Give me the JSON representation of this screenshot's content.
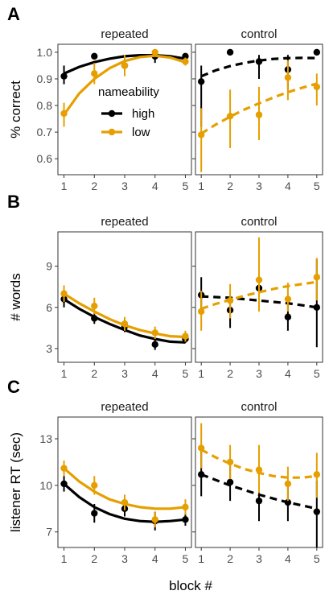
{
  "figure": {
    "panel_letters": [
      "A",
      "B",
      "C"
    ],
    "xlabel": "block #"
  },
  "colors": {
    "high": "#000000",
    "low": "#E69F00"
  },
  "legend": {
    "title": "nameability",
    "entries": [
      {
        "key": "high",
        "label": "high"
      },
      {
        "key": "low",
        "label": "low"
      }
    ],
    "placement": "inside panel A repeated, lower-middle"
  },
  "chart_data": [
    {
      "type": "line",
      "panel": "A",
      "ylabel": "% correct",
      "ylim": [
        0.54,
        1.03
      ],
      "yticks": [
        0.6,
        0.7,
        0.8,
        0.9,
        1.0
      ],
      "ytick_labels": [
        "0.6",
        "0.7",
        "0.8",
        "0.9",
        "1.0"
      ],
      "xticks": [
        1,
        2,
        3,
        4,
        5
      ],
      "xlim": [
        0.8,
        5.2
      ],
      "facets": [
        {
          "label": "repeated",
          "linestyle": "solid",
          "series": [
            {
              "key": "high",
              "x": [
                1,
                2,
                3,
                4,
                5
              ],
              "y": [
                0.91,
                0.985,
                0.95,
                0.985,
                0.985
              ],
              "lo": [
                0.88,
                0.985,
                0.93,
                0.96,
                0.985
              ],
              "hi": [
                0.95,
                0.985,
                0.975,
                1.0,
                0.985
              ],
              "fit": [
                [
                  1,
                  0.92
                ],
                [
                  1.5,
                  0.945
                ],
                [
                  2,
                  0.963
                ],
                [
                  2.5,
                  0.976
                ],
                [
                  3,
                  0.985
                ],
                [
                  3.5,
                  0.989
                ],
                [
                  4,
                  0.989
                ],
                [
                  4.5,
                  0.985
                ],
                [
                  5,
                  0.976
                ]
              ]
            },
            {
              "key": "low",
              "x": [
                1,
                2,
                3,
                4,
                5
              ],
              "y": [
                0.77,
                0.92,
                0.95,
                1.0,
                0.965
              ],
              "lo": [
                0.72,
                0.88,
                0.91,
                0.985,
                0.95
              ],
              "hi": [
                0.81,
                0.96,
                0.99,
                1.0,
                0.98
              ],
              "fit": [
                [
                  1,
                  0.765
                ],
                [
                  1.5,
                  0.845
                ],
                [
                  2,
                  0.9
                ],
                [
                  2.5,
                  0.94
                ],
                [
                  3,
                  0.967
                ],
                [
                  3.5,
                  0.982
                ],
                [
                  4,
                  0.987
                ],
                [
                  4.5,
                  0.98
                ],
                [
                  5,
                  0.962
                ]
              ]
            }
          ]
        },
        {
          "label": "control",
          "linestyle": "dashed",
          "series": [
            {
              "key": "high",
              "x": [
                1,
                2,
                3,
                4,
                5
              ],
              "y": [
                0.89,
                1.0,
                0.965,
                0.935,
                1.0
              ],
              "lo": [
                0.72,
                1.0,
                0.9,
                0.86,
                1.0
              ],
              "hi": [
                0.95,
                1.0,
                0.99,
                0.99,
                1.0
              ],
              "fit": [
                [
                  1,
                  0.91
                ],
                [
                  1.5,
                  0.932
                ],
                [
                  2,
                  0.948
                ],
                [
                  2.5,
                  0.96
                ],
                [
                  3,
                  0.969
                ],
                [
                  3.5,
                  0.975
                ],
                [
                  4,
                  0.978
                ],
                [
                  4.5,
                  0.979
                ],
                [
                  5,
                  0.978
                ]
              ]
            },
            {
              "key": "low",
              "x": [
                1,
                2,
                3,
                4,
                5
              ],
              "y": [
                0.69,
                0.76,
                0.765,
                0.905,
                0.87
              ],
              "lo": [
                0.55,
                0.64,
                0.67,
                0.82,
                0.8
              ],
              "hi": [
                0.79,
                0.86,
                0.87,
                0.97,
                0.92
              ],
              "fit": [
                [
                  1,
                  0.695
                ],
                [
                  1.5,
                  0.728
                ],
                [
                  2,
                  0.758
                ],
                [
                  2.5,
                  0.785
                ],
                [
                  3,
                  0.808
                ],
                [
                  3.5,
                  0.83
                ],
                [
                  4,
                  0.85
                ],
                [
                  4.5,
                  0.867
                ],
                [
                  5,
                  0.882
                ]
              ]
            }
          ]
        }
      ]
    },
    {
      "type": "line",
      "panel": "B",
      "ylabel": "# words",
      "ylim": [
        2.0,
        11.5
      ],
      "yticks": [
        3,
        6,
        9
      ],
      "ytick_labels": [
        "3",
        "6",
        "9"
      ],
      "xticks": [
        1,
        2,
        3,
        4,
        5
      ],
      "xlim": [
        0.8,
        5.2
      ],
      "facets": [
        {
          "label": "repeated",
          "linestyle": "solid",
          "series": [
            {
              "key": "high",
              "x": [
                1,
                2,
                3,
                4,
                5
              ],
              "y": [
                6.6,
                5.2,
                4.6,
                3.3,
                3.7
              ],
              "lo": [
                6.0,
                4.8,
                4.2,
                2.9,
                3.4
              ],
              "hi": [
                7.2,
                5.6,
                5.0,
                3.7,
                4.0
              ],
              "fit": [
                [
                  1,
                  6.6
                ],
                [
                  1.5,
                  5.9
                ],
                [
                  2,
                  5.3
                ],
                [
                  2.5,
                  4.8
                ],
                [
                  3,
                  4.35
                ],
                [
                  3.5,
                  3.95
                ],
                [
                  4,
                  3.7
                ],
                [
                  4.5,
                  3.5
                ],
                [
                  5,
                  3.45
                ]
              ]
            },
            {
              "key": "low",
              "x": [
                1,
                2,
                3,
                4,
                5
              ],
              "y": [
                7.0,
                6.1,
                4.8,
                4.15,
                3.9
              ],
              "lo": [
                6.4,
                5.5,
                4.3,
                3.7,
                3.5
              ],
              "hi": [
                7.6,
                6.7,
                5.3,
                4.6,
                4.3
              ],
              "fit": [
                [
                  1,
                  7.0
                ],
                [
                  1.5,
                  6.3
                ],
                [
                  2,
                  5.7
                ],
                [
                  2.5,
                  5.15
                ],
                [
                  3,
                  4.7
                ],
                [
                  3.5,
                  4.35
                ],
                [
                  4,
                  4.1
                ],
                [
                  4.5,
                  3.9
                ],
                [
                  5,
                  3.85
                ]
              ]
            }
          ]
        },
        {
          "label": "control",
          "linestyle": "dashed",
          "series": [
            {
              "key": "high",
              "x": [
                1,
                2,
                3,
                4,
                5
              ],
              "y": [
                6.9,
                5.8,
                7.4,
                5.3,
                6.0
              ],
              "lo": [
                5.9,
                4.5,
                6.2,
                4.3,
                3.1
              ],
              "hi": [
                8.2,
                6.8,
                8.4,
                6.2,
                9.5
              ],
              "fit": [
                [
                  1,
                  6.8
                ],
                [
                  1.5,
                  6.75
                ],
                [
                  2,
                  6.7
                ],
                [
                  2.5,
                  6.6
                ],
                [
                  3,
                  6.5
                ],
                [
                  3.5,
                  6.4
                ],
                [
                  4,
                  6.3
                ],
                [
                  4.5,
                  6.15
                ],
                [
                  5,
                  6.0
                ]
              ]
            },
            {
              "key": "low",
              "x": [
                1,
                2,
                3,
                4,
                5
              ],
              "y": [
                5.7,
                6.5,
                8.0,
                6.6,
                8.2
              ],
              "lo": [
                4.3,
                5.2,
                5.7,
                5.7,
                6.5
              ],
              "hi": [
                7.2,
                7.7,
                11.1,
                7.8,
                9.6
              ],
              "fit": [
                [
                  1,
                  5.9
                ],
                [
                  1.5,
                  6.25
                ],
                [
                  2,
                  6.55
                ],
                [
                  2.5,
                  6.85
                ],
                [
                  3,
                  7.1
                ],
                [
                  3.5,
                  7.35
                ],
                [
                  4,
                  7.55
                ],
                [
                  4.5,
                  7.7
                ],
                [
                  5,
                  7.85
                ]
              ]
            }
          ]
        }
      ]
    },
    {
      "type": "line",
      "panel": "C",
      "ylabel": "listener RT (sec)",
      "ylim": [
        6.0,
        14.4
      ],
      "yticks": [
        7,
        10,
        13
      ],
      "ytick_labels": [
        "7",
        "10",
        "13"
      ],
      "xticks": [
        1,
        2,
        3,
        4,
        5
      ],
      "xlim": [
        0.8,
        5.2
      ],
      "facets": [
        {
          "label": "repeated",
          "linestyle": "solid",
          "series": [
            {
              "key": "high",
              "x": [
                1,
                2,
                3,
                4,
                5
              ],
              "y": [
                10.1,
                8.2,
                8.5,
                7.7,
                7.8
              ],
              "lo": [
                9.6,
                7.6,
                8.0,
                7.1,
                7.4
              ],
              "hi": [
                10.6,
                8.8,
                9.0,
                8.3,
                8.2
              ],
              "fit": [
                [
                  1,
                  10.1
                ],
                [
                  1.5,
                  9.25
                ],
                [
                  2,
                  8.6
                ],
                [
                  2.5,
                  8.15
                ],
                [
                  3,
                  7.85
                ],
                [
                  3.5,
                  7.7
                ],
                [
                  4,
                  7.65
                ],
                [
                  4.5,
                  7.7
                ],
                [
                  5,
                  7.8
                ]
              ]
            },
            {
              "key": "low",
              "x": [
                1,
                2,
                3,
                4,
                5
              ],
              "y": [
                11.1,
                10.0,
                8.9,
                7.8,
                8.6
              ],
              "lo": [
                10.6,
                9.4,
                8.4,
                7.3,
                8.1
              ],
              "hi": [
                11.6,
                10.6,
                9.4,
                8.3,
                9.1
              ],
              "fit": [
                [
                  1,
                  11.1
                ],
                [
                  1.5,
                  10.25
                ],
                [
                  2,
                  9.6
                ],
                [
                  2.5,
                  9.1
                ],
                [
                  3,
                  8.8
                ],
                [
                  3.5,
                  8.6
                ],
                [
                  4,
                  8.5
                ],
                [
                  4.5,
                  8.5
                ],
                [
                  5,
                  8.6
                ]
              ]
            }
          ]
        },
        {
          "label": "control",
          "linestyle": "dashed",
          "series": [
            {
              "key": "high",
              "x": [
                1,
                2,
                3,
                4,
                5
              ],
              "y": [
                10.7,
                10.2,
                9.0,
                8.9,
                8.3
              ],
              "lo": [
                9.3,
                9.0,
                7.7,
                7.7,
                6.0
              ],
              "hi": [
                12.2,
                11.5,
                10.3,
                10.0,
                10.3
              ],
              "fit": [
                [
                  1,
                  10.7
                ],
                [
                  1.5,
                  10.35
                ],
                [
                  2,
                  10.0
                ],
                [
                  2.5,
                  9.7
                ],
                [
                  3,
                  9.4
                ],
                [
                  3.5,
                  9.15
                ],
                [
                  4,
                  8.9
                ],
                [
                  4.5,
                  8.7
                ],
                [
                  5,
                  8.5
                ]
              ]
            },
            {
              "key": "low",
              "x": [
                1,
                2,
                3,
                4,
                5
              ],
              "y": [
                12.4,
                11.5,
                11.0,
                10.1,
                10.7
              ],
              "lo": [
                11.1,
                10.4,
                9.5,
                9.0,
                9.2
              ],
              "hi": [
                14.0,
                12.6,
                12.6,
                11.2,
                12.1
              ],
              "fit": [
                [
                  1,
                  12.3
                ],
                [
                  1.5,
                  11.8
                ],
                [
                  2,
                  11.4
                ],
                [
                  2.5,
                  11.05
                ],
                [
                  3,
                  10.8
                ],
                [
                  3.5,
                  10.6
                ],
                [
                  4,
                  10.5
                ],
                [
                  4.5,
                  10.5
                ],
                [
                  5,
                  10.6
                ]
              ]
            }
          ]
        }
      ]
    }
  ]
}
